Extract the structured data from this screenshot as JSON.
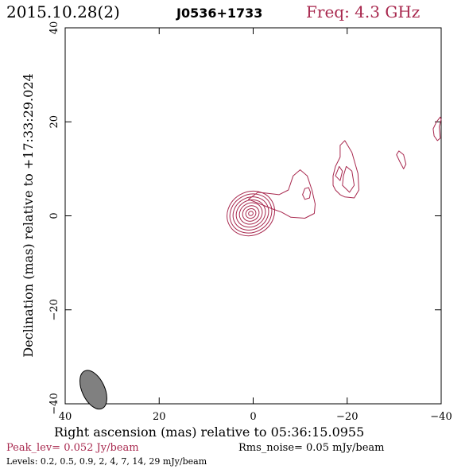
{
  "header": {
    "date": "2015.10.28(2)",
    "source": "J0536+1733",
    "freq": "Freq: 4.3 GHz"
  },
  "footer": {
    "peak": "Peak_lev=  0.052 Jy/beam",
    "rms": "Rms_noise= 0.05 mJy/beam",
    "levels": "Levels: 0.2,  0.5,  0.9,    2,    4,    7,   14,   29 mJy/beam"
  },
  "colors": {
    "contour": "#a8284e",
    "title_red": "#a8284e",
    "axis": "#000000",
    "beam_fill": "#808080"
  },
  "chart_data": {
    "type": "contour",
    "xlabel": "Right ascension (mas) relative to 05:36:15.0955",
    "ylabel": "Declination (mas) relative to +17:33:29.024",
    "xlim": [
      40,
      -40
    ],
    "ylim": [
      -40,
      40
    ],
    "x_ticks": [
      40,
      20,
      0,
      -20,
      -40
    ],
    "y_ticks": [
      40,
      20,
      0,
      -20,
      -40
    ],
    "x_tick_labels": [
      "40",
      "20",
      "0",
      "−20",
      "−40"
    ],
    "y_tick_labels": [
      "40",
      "20",
      "0",
      "−20",
      "−40"
    ],
    "levels_mjy": [
      0.2,
      0.5,
      0.9,
      2,
      4,
      7,
      14,
      29
    ],
    "peak_jy_per_beam": 0.052,
    "rms_mjy_per_beam": 0.05,
    "beam": {
      "x": 34,
      "y": -37,
      "major": 4.4,
      "minor": 2.4,
      "pa": -25
    },
    "core": {
      "x": 0.5,
      "y": 0.5,
      "rings": [
        [
          5.2,
          4.6
        ],
        [
          4.6,
          4.0
        ],
        [
          3.9,
          3.4
        ],
        [
          3.2,
          2.8
        ],
        [
          2.5,
          2.2
        ],
        [
          1.8,
          1.6
        ],
        [
          1.1,
          1.0
        ],
        [
          0.5,
          0.45
        ]
      ]
    },
    "jet_contours": [
      [
        [
          -4,
          1.5
        ],
        [
          -6,
          0.8
        ],
        [
          -8,
          -0.3
        ],
        [
          -11,
          -0.5
        ],
        [
          -13,
          0.5
        ],
        [
          -13.2,
          2.5
        ],
        [
          -12.5,
          5.5
        ],
        [
          -11.5,
          8.5
        ],
        [
          -10,
          9.8
        ],
        [
          -8.5,
          8.5
        ],
        [
          -7.5,
          5.5
        ],
        [
          -5.5,
          4.5
        ],
        [
          -3,
          4.8
        ],
        [
          -1,
          5
        ],
        [
          1,
          3.5
        ]
      ],
      [
        [
          -10.5,
          4.5
        ],
        [
          -11,
          3.5
        ],
        [
          -12,
          3.8
        ],
        [
          -12.2,
          5
        ],
        [
          -11.8,
          6
        ],
        [
          -11,
          5.8
        ]
      ],
      [
        [
          -17.5,
          5.5
        ],
        [
          -18.5,
          4.5
        ],
        [
          -19.5,
          4
        ],
        [
          -21.5,
          3.8
        ],
        [
          -22.5,
          5.5
        ],
        [
          -22.3,
          9
        ],
        [
          -21,
          13.5
        ],
        [
          -19.5,
          16
        ],
        [
          -18.5,
          15
        ],
        [
          -18.5,
          12.5
        ],
        [
          -17.5,
          10.5
        ],
        [
          -17,
          8.5
        ],
        [
          -17,
          6.5
        ]
      ],
      [
        [
          -19,
          6.5
        ],
        [
          -20.5,
          5
        ],
        [
          -21.5,
          6.5
        ],
        [
          -21,
          9.5
        ],
        [
          -19.8,
          10.5
        ],
        [
          -19.2,
          8.5
        ]
      ],
      [
        [
          -17.5,
          8.5
        ],
        [
          -18.5,
          7.5
        ],
        [
          -19,
          9.5
        ],
        [
          -18.3,
          10.5
        ]
      ],
      [
        [
          -30.5,
          13
        ],
        [
          -31.2,
          11.5
        ],
        [
          -32,
          10
        ],
        [
          -32.5,
          11
        ],
        [
          -32,
          13
        ],
        [
          -31,
          13.8
        ]
      ],
      [
        [
          -38.5,
          17
        ],
        [
          -38.3,
          18.5
        ],
        [
          -39,
          20
        ],
        [
          -39.8,
          21
        ],
        [
          -40,
          20.5
        ],
        [
          -39.6,
          19
        ],
        [
          -39.8,
          16.5
        ],
        [
          -39.2,
          16
        ]
      ]
    ]
  }
}
